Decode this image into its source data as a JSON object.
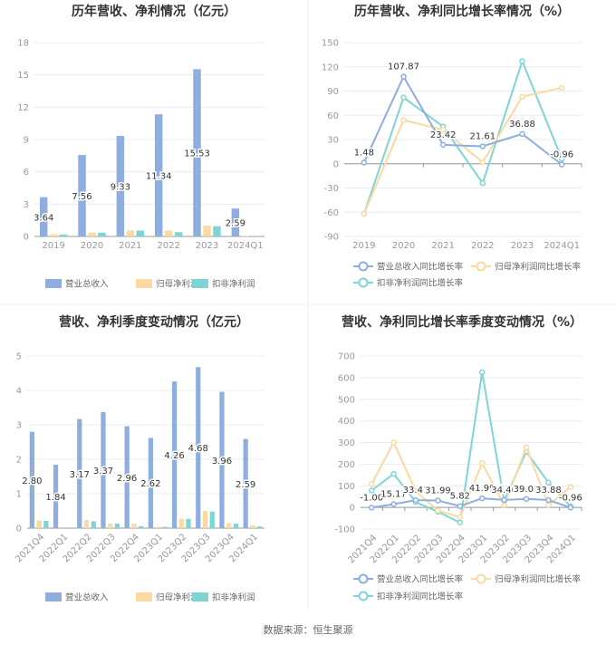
{
  "source": "数据来源：恒生聚源",
  "colors": {
    "revenue": "#8eaedf",
    "net": "#fbd9a0",
    "deduct": "#7fd5d5",
    "grid": "#e8ecf2",
    "axis": "#999999"
  },
  "chart_data": [
    {
      "type": "bar",
      "title": "历年营收、净利情况（亿元）",
      "categories": [
        "2019",
        "2020",
        "2021",
        "2022",
        "2023",
        "2024Q1"
      ],
      "ylim": [
        0,
        18
      ],
      "yticks": [
        0,
        3,
        6,
        9,
        12,
        15,
        18
      ],
      "legend": "bottom",
      "series": [
        {
          "name": "营业总收入",
          "values": [
            3.64,
            7.56,
            9.33,
            11.34,
            15.53,
            2.59
          ],
          "labels": [
            "3.64",
            "7.56",
            "9.33",
            "11.34",
            "15.53",
            "2.59"
          ]
        },
        {
          "name": "归母净利润",
          "values": [
            0.2,
            0.35,
            0.55,
            0.55,
            1.0,
            0.05
          ]
        },
        {
          "name": "扣非净利润",
          "values": [
            0.18,
            0.35,
            0.55,
            0.4,
            0.95,
            0.03
          ]
        }
      ]
    },
    {
      "type": "line",
      "title": "历年营收、净利同比增长率情况（%）",
      "categories": [
        "2019",
        "2020",
        "2021",
        "2022",
        "2023",
        "2024Q1"
      ],
      "ylim": [
        -90,
        150
      ],
      "yticks": [
        -90,
        -60,
        -30,
        0,
        30,
        60,
        90,
        120,
        150
      ],
      "legend": "bottom",
      "series": [
        {
          "name": "营业总收入同比增长率",
          "values": [
            1.48,
            107.87,
            23.42,
            21.61,
            36.88,
            -0.96
          ],
          "labels": [
            "1.48",
            "107.87",
            "23.42",
            "21.61",
            "36.88",
            "-0.96"
          ]
        },
        {
          "name": "归母净利润同比增长率",
          "values": [
            -62,
            54,
            42,
            2,
            83,
            94
          ]
        },
        {
          "name": "扣非净利润同比增长率",
          "values": [
            -62,
            82,
            46,
            -24,
            127,
            6
          ]
        }
      ]
    },
    {
      "type": "bar",
      "title": "营收、净利季度变动情况（亿元）",
      "categories": [
        "2021Q4",
        "2022Q1",
        "2022Q2",
        "2022Q3",
        "2022Q4",
        "2023Q1",
        "2023Q2",
        "2023Q3",
        "2023Q4",
        "2024Q1"
      ],
      "ylim": [
        0,
        5
      ],
      "yticks": [
        0,
        1,
        2,
        3,
        4,
        5
      ],
      "legend": "bottom",
      "series": [
        {
          "name": "营业总收入",
          "values": [
            2.8,
            1.84,
            3.17,
            3.37,
            2.96,
            2.62,
            4.26,
            4.68,
            3.96,
            2.59
          ],
          "labels": [
            "2.80",
            "1.84",
            "3.17",
            "3.37",
            "2.96",
            "2.62",
            "4.26",
            "4.68",
            "3.96",
            "2.59"
          ]
        },
        {
          "name": "归母净利润",
          "values": [
            0.22,
            0.0,
            0.24,
            0.13,
            0.13,
            0.04,
            0.27,
            0.5,
            0.14,
            0.08
          ]
        },
        {
          "name": "扣非净利润",
          "values": [
            0.21,
            0.0,
            0.2,
            0.13,
            0.06,
            0.04,
            0.27,
            0.48,
            0.13,
            0.05
          ]
        }
      ]
    },
    {
      "type": "line",
      "title": "营收、净利同比增长率季度变动情况（%）",
      "categories": [
        "2021Q4",
        "2022Q1",
        "2022Q2",
        "2022Q3",
        "2022Q4",
        "2023Q1",
        "2023Q2",
        "2023Q3",
        "2023Q4",
        "2024Q1"
      ],
      "ylim": [
        -100,
        700
      ],
      "yticks": [
        -100,
        0,
        100,
        200,
        300,
        400,
        500,
        600,
        700
      ],
      "legend": "bottom",
      "series": [
        {
          "name": "营业总收入同比增长率",
          "values": [
            -1.0,
            15.17,
            33.41,
            31.99,
            5.82,
            41.99,
            34.46,
            39.01,
            33.88,
            -0.96
          ],
          "labels": [
            "-1.00",
            "15.17",
            "33.41",
            "31.99",
            "5.82",
            "41.99",
            "34.46",
            "39.01",
            "33.88",
            "-0.96"
          ]
        },
        {
          "name": "归母净利润同比增长率",
          "values": [
            108,
            300,
            75,
            -15,
            -45,
            205,
            10,
            278,
            10,
            95
          ]
        },
        {
          "name": "扣非净利润同比增长率",
          "values": [
            78,
            155,
            25,
            -20,
            -70,
            625,
            30,
            258,
            115,
            5
          ]
        }
      ]
    }
  ]
}
